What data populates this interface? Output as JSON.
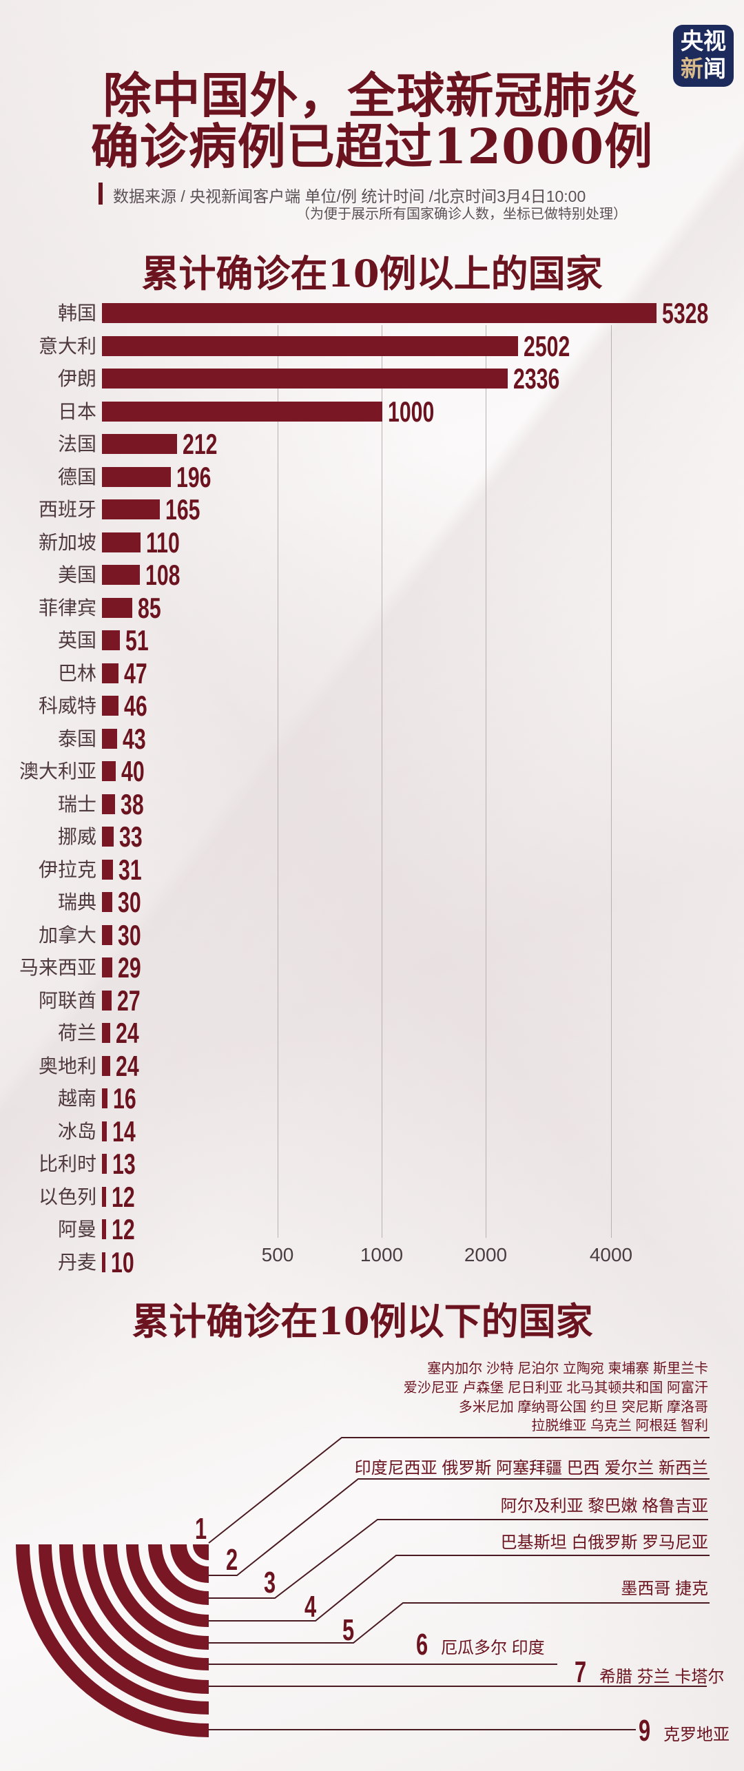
{
  "logo": {
    "line1": "央视",
    "line2a": "新",
    "line2b": "闻"
  },
  "title": {
    "line1": "除中国外，全球新冠肺炎",
    "line2": "确诊病例已超过12000例"
  },
  "source": "数据来源 / 央视新闻客户端  单位/例   统计时间 /北京时间3月4日10:00",
  "note": "（为便于展示所有国家确诊人数，坐标已做特别处理）",
  "colors": {
    "bar": "#7a1724",
    "title": "#6b1420",
    "logo_bg": "#1d2a5c"
  },
  "chart_data": {
    "type": "bar",
    "orientation": "horizontal",
    "title": "累计确诊在10例以上的国家",
    "x_scale": "custom (compressed, non-linear)",
    "x_ticks": [
      "500",
      "1000",
      "2000",
      "4000"
    ],
    "grid": true,
    "categories": [
      "韩国",
      "意大利",
      "伊朗",
      "日本",
      "法国",
      "德国",
      "西班牙",
      "新加坡",
      "美国",
      "菲律宾",
      "英国",
      "巴林",
      "科威特",
      "泰国",
      "澳大利亚",
      "瑞士",
      "挪威",
      "伊拉克",
      "瑞典",
      "加拿大",
      "马来西亚",
      "阿联酋",
      "荷兰",
      "奥地利",
      "越南",
      "冰岛",
      "比利时",
      "以色列",
      "阿曼",
      "丹麦"
    ],
    "values": [
      5328,
      2502,
      2336,
      1000,
      212,
      196,
      165,
      110,
      108,
      85,
      51,
      47,
      46,
      43,
      40,
      38,
      33,
      31,
      30,
      30,
      29,
      27,
      24,
      24,
      16,
      14,
      13,
      12,
      12,
      10
    ]
  },
  "below10": {
    "title": "累计确诊在10例以下的国家",
    "tier1_lines": [
      "塞内加尔  沙特  尼泊尔  立陶宛  柬埔寨  斯里兰卡",
      "爱沙尼亚  卢森堡  尼日利亚  北马其顿共和国  阿富汗",
      "多米尼加  摩纳哥公国  约旦  突尼斯  摩洛哥",
      "拉脱维亚  乌克兰  阿根廷  智利"
    ],
    "tiers": [
      {
        "count": "1",
        "countries": ""
      },
      {
        "count": "2",
        "countries": "印度尼西亚  俄罗斯  阿塞拜疆  巴西  爱尔兰  新西兰"
      },
      {
        "count": "3",
        "countries": "阿尔及利亚 黎巴嫩  格鲁吉亚"
      },
      {
        "count": "4",
        "countries": "巴基斯坦  白俄罗斯  罗马尼亚"
      },
      {
        "count": "5",
        "countries": "墨西哥  捷克"
      },
      {
        "count": "6",
        "countries": "厄瓜多尔  印度"
      },
      {
        "count": "7",
        "countries": "希腊   芬兰  卡塔尔"
      },
      {
        "count": "9",
        "countries": "克罗地亚"
      }
    ]
  }
}
